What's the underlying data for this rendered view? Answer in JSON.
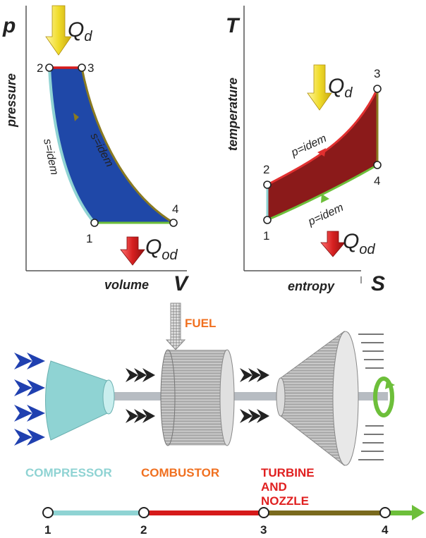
{
  "pv": {
    "y_axis_letter": "p",
    "y_axis_label": "pressure",
    "x_axis_letter": "V",
    "x_axis_label": "volume",
    "heat_in": {
      "main": "Q",
      "sub": "d"
    },
    "heat_out": {
      "main": "Q",
      "sub": "od"
    },
    "curve_label_left": "s=idem",
    "curve_label_right": "s=idem",
    "points": [
      "1",
      "2",
      "3",
      "4"
    ]
  },
  "ts": {
    "y_axis_letter": "T",
    "y_axis_label": "temperature",
    "x_axis_letter": "S",
    "x_axis_label": "entropy",
    "heat_in": {
      "main": "Q",
      "sub": "d"
    },
    "heat_out": {
      "main": "Q",
      "sub": "od"
    },
    "curve_label_top": "p=idem",
    "curve_label_bottom": "p=idem",
    "points": [
      "1",
      "2",
      "3",
      "4"
    ]
  },
  "engine": {
    "fuel_label": "FUEL",
    "compressor_label": "COMPRESSOR",
    "combustor_label": "COMBUSTOR",
    "turbine_label_line1": "TURBINE",
    "turbine_label_line2": "AND",
    "turbine_label_line3": "NOZZLE"
  },
  "stations": [
    "1",
    "2",
    "3",
    "4"
  ],
  "colors": {
    "pv_fill": "#1f48a8",
    "ts_fill": "#8b1a1a",
    "compressor": "#8fd3d3",
    "combustor_line": "#d61a1a",
    "turbine_line": "#7a6a1e",
    "exhaust_arrow": "#6dbf3a",
    "heat_in_arrow": "#f0dc2a",
    "heat_out_arrow": "#d62020",
    "combustor_text": "#f07020",
    "turbine_text": "#e02020",
    "intake_arrow": "#2040b0"
  }
}
